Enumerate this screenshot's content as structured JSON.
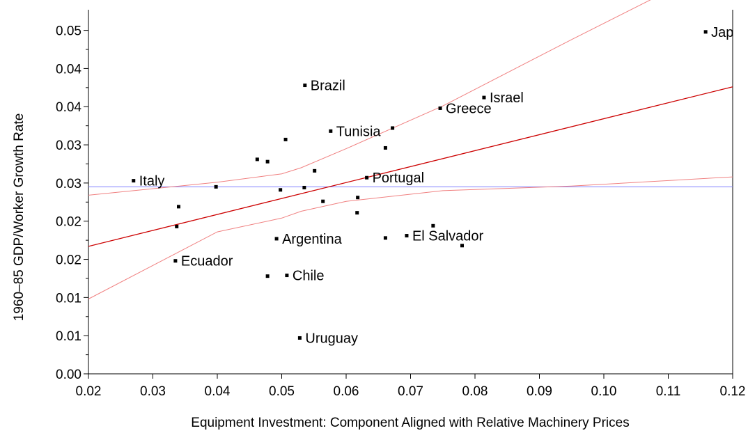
{
  "chart_data": {
    "type": "scatter",
    "xlabel": "Equipment Investment: Component Aligned with Relative Machinery Prices",
    "ylabel": "1960–85 GDP/Worker Growth Rate",
    "xlim": [
      0.02,
      0.12
    ],
    "ylim": [
      0.0,
      0.05
    ],
    "x_ticks": [
      "0.02",
      "0.03",
      "0.04",
      "0.05",
      "0.06",
      "0.07",
      "0.08",
      "0.09",
      "0.10",
      "0.11",
      "0.12"
    ],
    "y_ticks": [
      "0.00",
      "0.01",
      "0.01",
      "0.02",
      "0.02",
      "0.03",
      "0.03",
      "0.04",
      "0.04",
      "0.05"
    ],
    "y_tick_values": [
      0.0,
      0.005,
      0.01,
      0.015,
      0.02,
      0.025,
      0.03,
      0.035,
      0.04,
      0.045
    ],
    "grid": false,
    "points": [
      {
        "x": 0.027,
        "y": 0.0253,
        "label": "Italy"
      },
      {
        "x": 0.0335,
        "y": 0.0148,
        "label": "Ecuador"
      },
      {
        "x": 0.0337,
        "y": 0.0193,
        "label": ""
      },
      {
        "x": 0.034,
        "y": 0.0219,
        "label": ""
      },
      {
        "x": 0.0398,
        "y": 0.0245,
        "label": ""
      },
      {
        "x": 0.0462,
        "y": 0.0281,
        "label": ""
      },
      {
        "x": 0.0478,
        "y": 0.0278,
        "label": ""
      },
      {
        "x": 0.0492,
        "y": 0.0177,
        "label": "Argentina"
      },
      {
        "x": 0.0498,
        "y": 0.0241,
        "label": ""
      },
      {
        "x": 0.0478,
        "y": 0.0128,
        "label": ""
      },
      {
        "x": 0.0508,
        "y": 0.0129,
        "label": "Chile"
      },
      {
        "x": 0.0506,
        "y": 0.0307,
        "label": ""
      },
      {
        "x": 0.0528,
        "y": 0.0047,
        "label": "Uruguay"
      },
      {
        "x": 0.0535,
        "y": 0.0244,
        "label": ""
      },
      {
        "x": 0.0536,
        "y": 0.0378,
        "label": "Brazil"
      },
      {
        "x": 0.0551,
        "y": 0.0266,
        "label": ""
      },
      {
        "x": 0.0564,
        "y": 0.0226,
        "label": ""
      },
      {
        "x": 0.0576,
        "y": 0.0318,
        "label": "Tunisia"
      },
      {
        "x": 0.0617,
        "y": 0.0211,
        "label": ""
      },
      {
        "x": 0.0618,
        "y": 0.0231,
        "label": ""
      },
      {
        "x": 0.0632,
        "y": 0.0257,
        "label": "Portugal"
      },
      {
        "x": 0.0661,
        "y": 0.0178,
        "label": ""
      },
      {
        "x": 0.0661,
        "y": 0.0296,
        "label": ""
      },
      {
        "x": 0.0672,
        "y": 0.0322,
        "label": ""
      },
      {
        "x": 0.0694,
        "y": 0.0181,
        "label": "El Salvador"
      },
      {
        "x": 0.0735,
        "y": 0.0194,
        "label": ""
      },
      {
        "x": 0.0746,
        "y": 0.0348,
        "label": "Greece"
      },
      {
        "x": 0.078,
        "y": 0.0168,
        "label": ""
      },
      {
        "x": 0.0814,
        "y": 0.0362,
        "label": "Israel"
      },
      {
        "x": 0.1158,
        "y": 0.0448,
        "label": "Japan"
      }
    ],
    "fit_line": {
      "x": [
        0.02,
        0.12
      ],
      "y": [
        0.0167,
        0.0376
      ],
      "color": "#cc0000"
    },
    "ci_upper": {
      "x": [
        0.02,
        0.04,
        0.05,
        0.053,
        0.06,
        0.075,
        0.095,
        0.115
      ],
      "y": [
        0.0234,
        0.0251,
        0.0262,
        0.027,
        0.0295,
        0.0351,
        0.0438,
        0.0523
      ],
      "color": "#f08080"
    },
    "ci_lower": {
      "x": [
        0.02,
        0.04,
        0.05,
        0.053,
        0.06,
        0.075,
        0.095,
        0.12
      ],
      "y": [
        0.0098,
        0.0186,
        0.0204,
        0.0213,
        0.0226,
        0.024,
        0.0246,
        0.0258
      ],
      "color": "#f08080"
    },
    "mean_line": {
      "y": 0.0245,
      "color": "#8080ff"
    }
  }
}
